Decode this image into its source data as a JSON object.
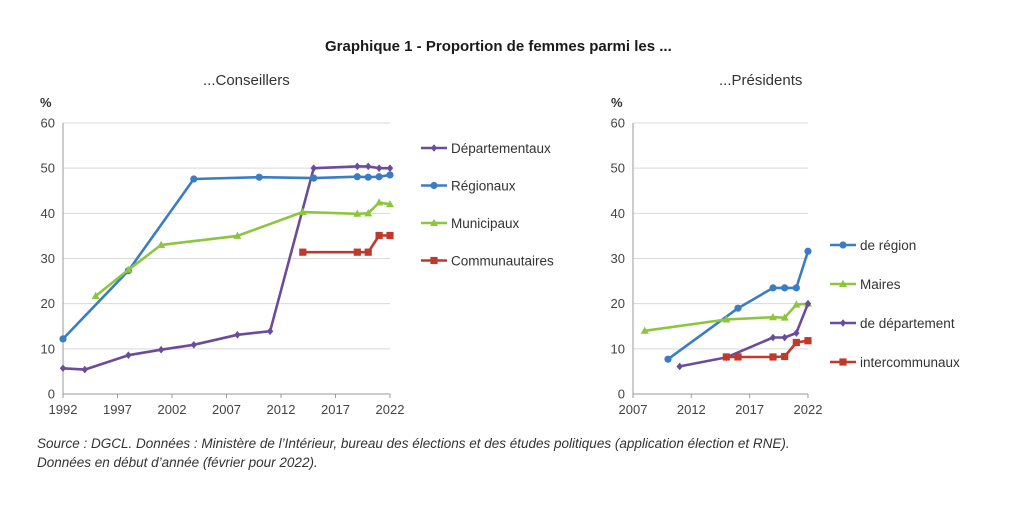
{
  "title": "Graphique 1 - Proportion de femmes parmi les ...",
  "source_line1": "Source : DGCL. Données : Ministère de l’Intérieur, bureau des élections et des études politiques (application élection et RNE).",
  "source_line2": "Données en début d’année (février pour 2022).",
  "chart_data": [
    {
      "type": "line",
      "subtitle": "...Conseillers",
      "ylabel": "%",
      "ylim": [
        0,
        60
      ],
      "yticks": [
        0,
        10,
        20,
        30,
        40,
        50,
        60
      ],
      "xlim": [
        1992,
        2022
      ],
      "xticks": [
        1992,
        1997,
        2002,
        2007,
        2012,
        2017,
        2022
      ],
      "grid": true,
      "legend": "right",
      "series": [
        {
          "name": "Départementaux",
          "color": "#6b4c9a",
          "marker": "diamond",
          "x": [
            1992,
            1994,
            1998,
            2001,
            2004,
            2008,
            2011,
            2015,
            2019,
            2020,
            2021,
            2022
          ],
          "y": [
            5.7,
            5.4,
            8.6,
            9.8,
            10.9,
            13.1,
            13.9,
            50.0,
            50.4,
            50.4,
            50.0,
            50.0
          ]
        },
        {
          "name": "Régionaux",
          "color": "#3b7dc4",
          "marker": "circle",
          "x": [
            1992,
            1998,
            2004,
            2010,
            2015,
            2019,
            2020,
            2021,
            2022
          ],
          "y": [
            12.2,
            27.3,
            47.6,
            48.0,
            47.8,
            48.1,
            48.0,
            48.1,
            48.5
          ]
        },
        {
          "name": "Municipaux",
          "color": "#8cc63f",
          "marker": "triangle",
          "x": [
            1995,
            1998,
            2001,
            2008,
            2014,
            2019,
            2020,
            2021,
            2022
          ],
          "y": [
            21.7,
            27.5,
            33.0,
            35.0,
            40.3,
            39.9,
            40.0,
            42.4,
            42.0
          ]
        },
        {
          "name": "Communautaires",
          "color": "#c0392b",
          "marker": "square",
          "x": [
            2014,
            2019,
            2020,
            2021,
            2022
          ],
          "y": [
            31.4,
            31.4,
            31.4,
            35.1,
            35.1
          ]
        }
      ]
    },
    {
      "type": "line",
      "subtitle": "...Présidents",
      "ylabel": "%",
      "ylim": [
        0,
        60
      ],
      "yticks": [
        0,
        10,
        20,
        30,
        40,
        50,
        60
      ],
      "xlim": [
        2007,
        2022
      ],
      "xticks": [
        2007,
        2012,
        2017,
        2022
      ],
      "grid": true,
      "legend": "right",
      "series": [
        {
          "name": "de région",
          "color": "#3b7dc4",
          "marker": "circle",
          "x": [
            2010,
            2016,
            2019,
            2020,
            2021,
            2022
          ],
          "y": [
            7.7,
            19.0,
            23.5,
            23.5,
            23.5,
            31.6
          ]
        },
        {
          "name": "Maires",
          "color": "#8cc63f",
          "marker": "triangle",
          "x": [
            2008,
            2015,
            2019,
            2020,
            2021,
            2022
          ],
          "y": [
            14.0,
            16.5,
            17.0,
            16.9,
            19.8,
            20.0
          ]
        },
        {
          "name": "de département",
          "color": "#6b4c9a",
          "marker": "diamond",
          "x": [
            2011,
            2015,
            2019,
            2020,
            2021,
            2022
          ],
          "y": [
            6.1,
            8.1,
            12.5,
            12.5,
            13.5,
            20.0
          ]
        },
        {
          "name": "intercommunaux",
          "color": "#c0392b",
          "marker": "square",
          "x": [
            2015,
            2016,
            2019,
            2020,
            2021,
            2022
          ],
          "y": [
            8.2,
            8.2,
            8.2,
            8.3,
            11.4,
            11.8
          ]
        }
      ]
    }
  ]
}
